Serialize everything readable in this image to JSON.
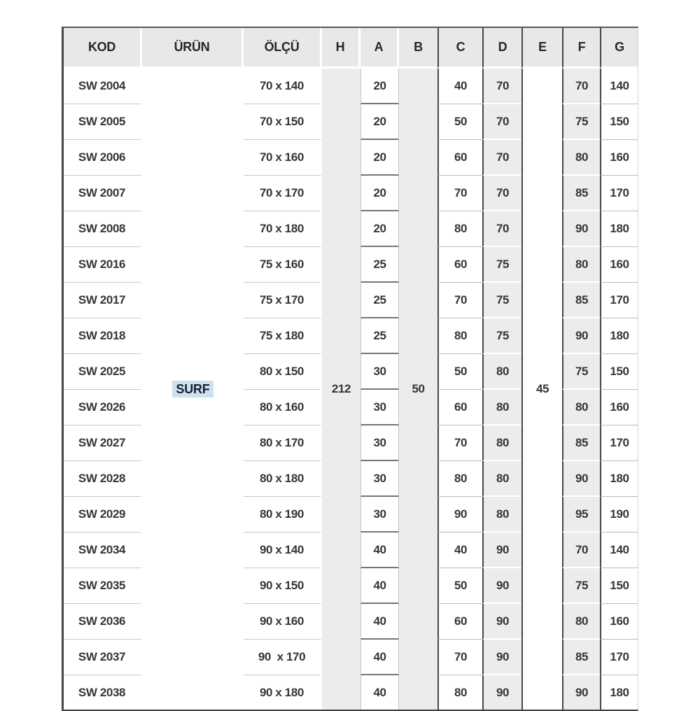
{
  "table": {
    "headers": [
      "KOD",
      "ÜRÜN",
      "ÖLÇÜ",
      "H",
      "A",
      "B",
      "C",
      "D",
      "E",
      "F",
      "G"
    ],
    "merged": {
      "urun": "SURF",
      "h": "212",
      "b": "50",
      "e": "45"
    },
    "rows": [
      {
        "kod": "SW 2004",
        "olcu": "70 x 140",
        "a": "20",
        "c": "40",
        "d": "70",
        "f": "70",
        "g": "140"
      },
      {
        "kod": "SW 2005",
        "olcu": "70 x 150",
        "a": "20",
        "c": "50",
        "d": "70",
        "f": "75",
        "g": "150"
      },
      {
        "kod": "SW 2006",
        "olcu": "70 x 160",
        "a": "20",
        "c": "60",
        "d": "70",
        "f": "80",
        "g": "160"
      },
      {
        "kod": "SW 2007",
        "olcu": "70 x 170",
        "a": "20",
        "c": "70",
        "d": "70",
        "f": "85",
        "g": "170"
      },
      {
        "kod": "SW 2008",
        "olcu": "70 x 180",
        "a": "20",
        "c": "80",
        "d": "70",
        "f": "90",
        "g": "180"
      },
      {
        "kod": "SW 2016",
        "olcu": "75 x 160",
        "a": "25",
        "c": "60",
        "d": "75",
        "f": "80",
        "g": "160"
      },
      {
        "kod": "SW 2017",
        "olcu": "75 x 170",
        "a": "25",
        "c": "70",
        "d": "75",
        "f": "85",
        "g": "170"
      },
      {
        "kod": "SW 2018",
        "olcu": "75 x 180",
        "a": "25",
        "c": "80",
        "d": "75",
        "f": "90",
        "g": "180"
      },
      {
        "kod": "SW 2025",
        "olcu": "80 x 150",
        "a": "30",
        "c": "50",
        "d": "80",
        "f": "75",
        "g": "150"
      },
      {
        "kod": "SW 2026",
        "olcu": "80 x 160",
        "a": "30",
        "c": "60",
        "d": "80",
        "f": "80",
        "g": "160"
      },
      {
        "kod": "SW 2027",
        "olcu": "80 x 170",
        "a": "30",
        "c": "70",
        "d": "80",
        "f": "85",
        "g": "170"
      },
      {
        "kod": "SW 2028",
        "olcu": "80 x 180",
        "a": "30",
        "c": "80",
        "d": "80",
        "f": "90",
        "g": "180"
      },
      {
        "kod": "SW 2029",
        "olcu": "80 x 190",
        "a": "30",
        "c": "90",
        "d": "80",
        "f": "95",
        "g": "190"
      },
      {
        "kod": "SW 2034",
        "olcu": "90 x 140",
        "a": "40",
        "c": "40",
        "d": "90",
        "f": "70",
        "g": "140"
      },
      {
        "kod": "SW 2035",
        "olcu": "90 x 150",
        "a": "40",
        "c": "50",
        "d": "90",
        "f": "75",
        "g": "150"
      },
      {
        "kod": "SW 2036",
        "olcu": "90 x 160",
        "a": "40",
        "c": "60",
        "d": "90",
        "f": "80",
        "g": "160"
      },
      {
        "kod": "SW 2037",
        "olcu": "90  x 170",
        "a": "40",
        "c": "70",
        "d": "90",
        "f": "85",
        "g": "170"
      },
      {
        "kod": "SW 2038",
        "olcu": "90 x 180",
        "a": "40",
        "c": "80",
        "d": "90",
        "f": "90",
        "g": "180"
      }
    ]
  },
  "colors": {
    "header_bg": "#e8e8e8",
    "stripe_bg": "#ececec",
    "dark_rule": "#46464c",
    "text": "#35353c",
    "surf_highlight_bg": "#cfe1f1",
    "surf_text": "#17202f"
  }
}
